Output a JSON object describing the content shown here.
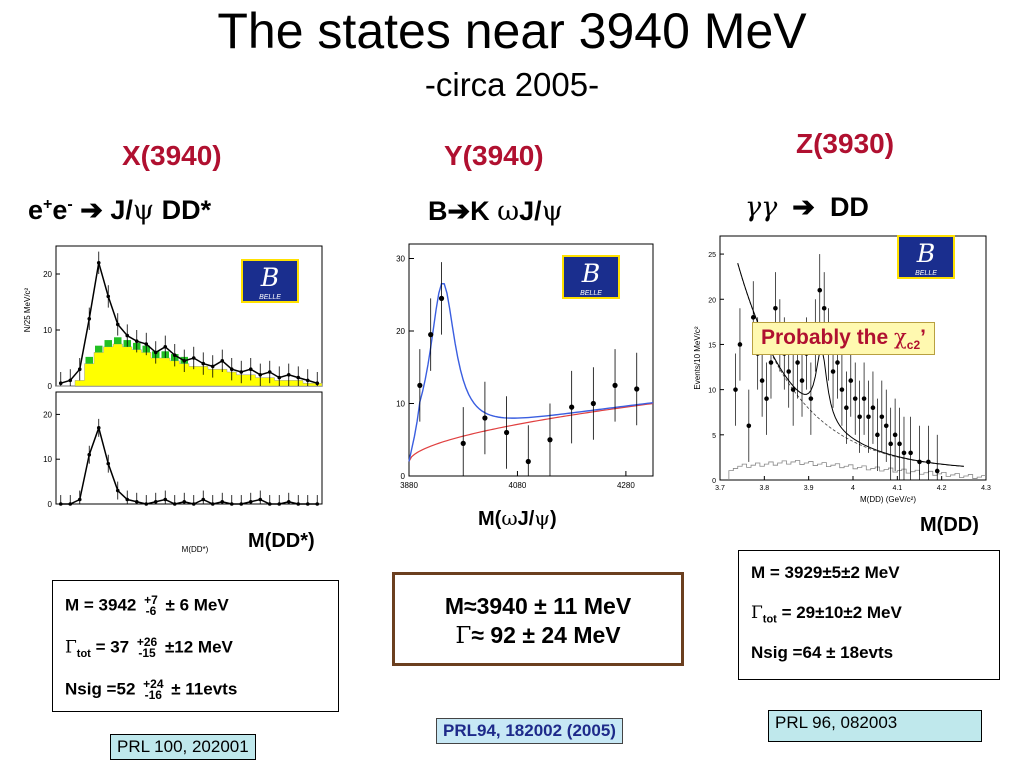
{
  "slide": {
    "title": "The states near 3940 MeV",
    "subtitle": "-circa 2005-"
  },
  "columns": [
    {
      "state": "X(3940)",
      "reaction": {
        "part1": "e",
        "sup1": "+",
        "part2": "e",
        "sup2": "-",
        "arrow": "➔",
        "product": "J/",
        "psi": "ψ",
        "rest": " DD*"
      },
      "axis_label": "M(DD*)",
      "plot_ylabel": "N/25 MeV/c²",
      "plot_xlabel": "M(DD*)",
      "results": {
        "mass": {
          "prefix": "M = 3942",
          "up": "+7",
          "down": "-6",
          "err": "± 6 MeV"
        },
        "width": {
          "gamma": "Γ",
          "sub": "tot",
          "value": " = 37",
          "up": "+26",
          "down": "-15",
          "err": "±12 MeV"
        },
        "nsig": {
          "prefix": "Nsig =52",
          "up": "+24",
          "down": "-16",
          "err": "± 11evts"
        }
      },
      "reference": "PRL 100, 202001"
    },
    {
      "state": "Y(3940)",
      "reaction": {
        "text": "B",
        "arrow": "➔",
        "k": "K ",
        "omega": "ω",
        "jpsi": "J/",
        "psi": "ψ"
      },
      "axis_label": {
        "prefix": "M(",
        "omega": "ω",
        "mid": "J/",
        "psi": "ψ",
        "suffix": ")"
      },
      "results": {
        "mass": "M≈3940 ± 11 MeV",
        "width": {
          "gamma": "Γ",
          "rest": "≈ 92 ± 24 MeV"
        }
      },
      "reference": "PRL94, 182002 (2005)"
    },
    {
      "state": "Z(3930)",
      "reaction": {
        "gg": "γγ",
        "arrow": "➔",
        "product": "DD"
      },
      "axis_label": "M(DD)",
      "callout": {
        "text": "Probably the ",
        "chi": "χ",
        "sub": "c2",
        "tail": "’"
      },
      "plot_ylabel": "Events/10 MeV/c²",
      "plot_xlabel": "M(DD) (GeV/c²)",
      "results": {
        "mass": "M = 3929±5±2 MeV",
        "width": {
          "gamma": "Γ",
          "sub": "tot",
          "rest": " = 29±10±2 MeV"
        },
        "nsig": "Nsig =64 ± 18evts"
      },
      "reference": "PRL 96, 082003"
    }
  ],
  "belle_logo": {
    "letter": "B",
    "label": "BELLE"
  },
  "chart_data": [
    {
      "type": "scatter",
      "name_ref": "X(3940) upper panel",
      "ylabel": "N/25 MeV/c²",
      "y_ticks": [
        "0",
        "10",
        "20"
      ],
      "ylim": [
        0,
        25
      ],
      "x_bins": 28,
      "values": [
        0.5,
        1,
        3,
        12,
        22,
        16,
        11,
        9,
        8,
        7.5,
        6,
        7,
        5.5,
        4.5,
        5,
        4,
        3.5,
        4.5,
        3,
        2.5,
        3,
        2,
        2.5,
        1.5,
        2,
        1.5,
        1,
        0.5
      ],
      "background": [
        0,
        0,
        1,
        4,
        6,
        7,
        7.5,
        7,
        6.5,
        6,
        5,
        5,
        4.5,
        4,
        3.5,
        3.5,
        3,
        3,
        2.5,
        2,
        2,
        1.5,
        1.5,
        1,
        1,
        1,
        0.5,
        0.5
      ],
      "colors": {
        "background_fill": "#ffff00",
        "sideband_fill": "#22c022",
        "fit": "#000000"
      }
    },
    {
      "type": "scatter",
      "name_ref": "X(3940) lower panel",
      "y_ticks": [
        "0",
        "10",
        "20"
      ],
      "ylim": [
        0,
        25
      ],
      "x_bins": 28,
      "values": [
        0,
        0,
        1,
        11,
        17,
        9,
        3,
        1,
        0.5,
        0,
        0.5,
        1,
        0,
        0.5,
        0,
        1,
        0,
        0.5,
        0,
        0,
        0.5,
        1,
        0,
        0,
        0.5,
        0,
        0,
        0
      ],
      "xlabel": "M(DD*)"
    },
    {
      "type": "scatter",
      "name_ref": "Y(3940) M(ωJ/ψ)",
      "x_ticks": [
        "3880",
        "4080",
        "4280"
      ],
      "y_ticks": [
        "0",
        "10",
        "20",
        "30"
      ],
      "xlim": [
        3880,
        4330
      ],
      "ylim": [
        0,
        32
      ],
      "points": [
        {
          "x": 3900,
          "y": 12.5
        },
        {
          "x": 3920,
          "y": 19.5
        },
        {
          "x": 3940,
          "y": 24.5
        },
        {
          "x": 3980,
          "y": 4.5
        },
        {
          "x": 4020,
          "y": 8
        },
        {
          "x": 4060,
          "y": 6
        },
        {
          "x": 4100,
          "y": 2
        },
        {
          "x": 4140,
          "y": 5
        },
        {
          "x": 4180,
          "y": 9.5
        },
        {
          "x": 4220,
          "y": 10
        },
        {
          "x": 4260,
          "y": 12.5
        },
        {
          "x": 4300,
          "y": 12
        }
      ],
      "colors": {
        "signal_fit": "#3a5ee0",
        "background_fit": "#e04040"
      }
    },
    {
      "type": "scatter",
      "name_ref": "Z(3930) M(DD)",
      "ylabel": "Events/10 MeV/c²",
      "xlabel": "M(DD) (GeV/c²)",
      "x_ticks": [
        "3.7",
        "3.8",
        "3.9",
        "4",
        "4.1",
        "4.2",
        "4.3"
      ],
      "y_ticks": [
        "0",
        "5",
        "10",
        "15",
        "20",
        "25"
      ],
      "xlim": [
        3.7,
        4.3
      ],
      "ylim": [
        0,
        27
      ],
      "points": [
        {
          "x": 3.735,
          "y": 10
        },
        {
          "x": 3.745,
          "y": 15
        },
        {
          "x": 3.765,
          "y": 6
        },
        {
          "x": 3.775,
          "y": 18
        },
        {
          "x": 3.785,
          "y": 14
        },
        {
          "x": 3.795,
          "y": 11
        },
        {
          "x": 3.805,
          "y": 9
        },
        {
          "x": 3.815,
          "y": 13
        },
        {
          "x": 3.825,
          "y": 19
        },
        {
          "x": 3.835,
          "y": 16
        },
        {
          "x": 3.845,
          "y": 14
        },
        {
          "x": 3.855,
          "y": 12
        },
        {
          "x": 3.865,
          "y": 10
        },
        {
          "x": 3.875,
          "y": 13
        },
        {
          "x": 3.885,
          "y": 11
        },
        {
          "x": 3.895,
          "y": 14
        },
        {
          "x": 3.905,
          "y": 9
        },
        {
          "x": 3.915,
          "y": 16
        },
        {
          "x": 3.925,
          "y": 21
        },
        {
          "x": 3.935,
          "y": 19
        },
        {
          "x": 3.945,
          "y": 15
        },
        {
          "x": 3.955,
          "y": 12
        },
        {
          "x": 3.965,
          "y": 13
        },
        {
          "x": 3.975,
          "y": 10
        },
        {
          "x": 3.985,
          "y": 8
        },
        {
          "x": 3.995,
          "y": 11
        },
        {
          "x": 4.005,
          "y": 9
        },
        {
          "x": 4.015,
          "y": 7
        },
        {
          "x": 4.025,
          "y": 9
        },
        {
          "x": 4.035,
          "y": 7
        },
        {
          "x": 4.045,
          "y": 8
        },
        {
          "x": 4.055,
          "y": 5
        },
        {
          "x": 4.065,
          "y": 7
        },
        {
          "x": 4.075,
          "y": 6
        },
        {
          "x": 4.085,
          "y": 4
        },
        {
          "x": 4.095,
          "y": 5
        },
        {
          "x": 4.105,
          "y": 4
        },
        {
          "x": 4.115,
          "y": 3
        },
        {
          "x": 4.13,
          "y": 3
        },
        {
          "x": 4.15,
          "y": 2
        },
        {
          "x": 4.17,
          "y": 2
        },
        {
          "x": 4.19,
          "y": 1
        }
      ],
      "colors": {
        "fit": "#000000",
        "histogram": "#888888"
      }
    }
  ]
}
